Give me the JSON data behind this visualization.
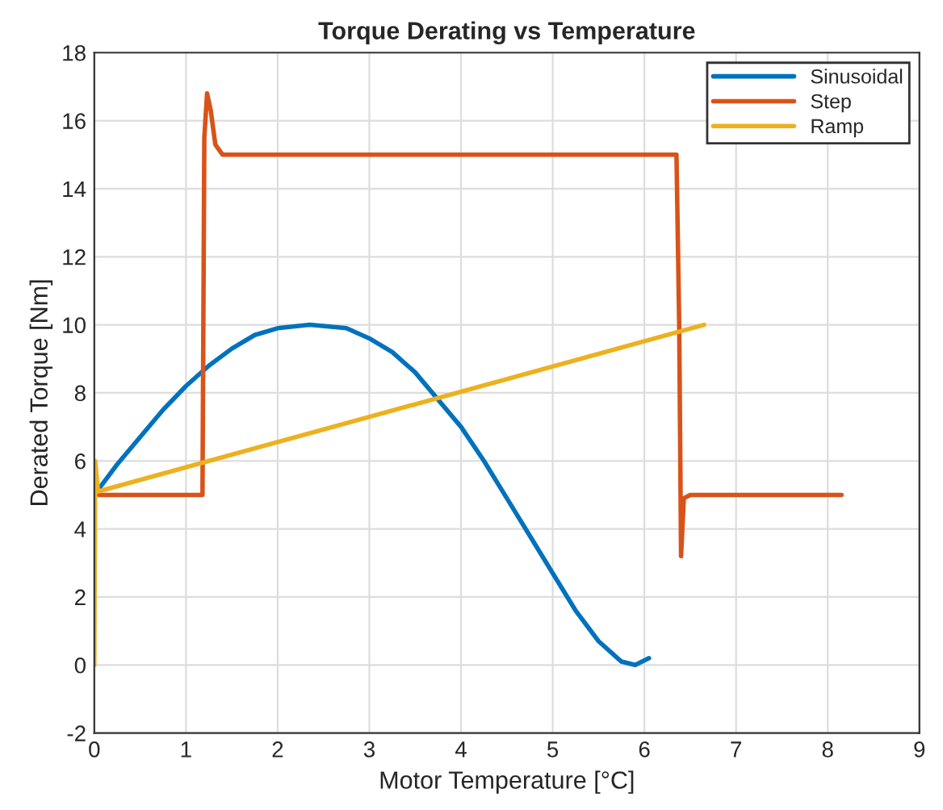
{
  "chart_data": {
    "type": "line",
    "title": "Torque Derating vs Temperature",
    "xlabel": "Motor Temperature [°C]",
    "ylabel": "Derated Torque [Nm]",
    "xlim": [
      0,
      9
    ],
    "xticks": [
      0,
      1,
      2,
      3,
      4,
      5,
      6,
      7,
      8,
      9
    ],
    "ylim": [
      -2,
      18
    ],
    "yticks": [
      -2,
      0,
      2,
      4,
      6,
      8,
      10,
      12,
      14,
      16,
      18
    ],
    "grid": true,
    "legend": "top right",
    "series": [
      {
        "name": "Sinusoidal",
        "color": "#0072bd",
        "x": [
          0,
          0.25,
          0.5,
          0.75,
          1.0,
          1.25,
          1.5,
          1.75,
          2.0,
          2.35,
          2.75,
          3.0,
          3.25,
          3.5,
          3.75,
          4.0,
          4.25,
          4.5,
          4.75,
          5.0,
          5.25,
          5.5,
          5.75,
          5.9,
          6.05
        ],
        "values": [
          5.0,
          5.9,
          6.7,
          7.5,
          8.2,
          8.8,
          9.3,
          9.7,
          9.9,
          10.0,
          9.9,
          9.6,
          9.2,
          8.6,
          7.8,
          7.0,
          6.0,
          4.9,
          3.8,
          2.7,
          1.6,
          0.7,
          0.1,
          0.0,
          0.2
        ]
      },
      {
        "name": "Step",
        "color": "#d95319",
        "x": [
          0,
          0.05,
          1.18,
          1.2,
          1.23,
          1.27,
          1.32,
          1.4,
          6.35,
          6.38,
          6.4,
          6.43,
          6.5,
          8.15
        ],
        "values": [
          5.3,
          5.0,
          5.0,
          15.5,
          16.8,
          16.3,
          15.3,
          15.0,
          15.0,
          10.0,
          3.2,
          4.9,
          5.0,
          5.0
        ]
      },
      {
        "name": "Ramp",
        "color": "#edb120",
        "x": [
          0,
          0.01,
          0.04,
          6.65
        ],
        "values": [
          0,
          6.0,
          5.1,
          10.0
        ]
      }
    ]
  }
}
